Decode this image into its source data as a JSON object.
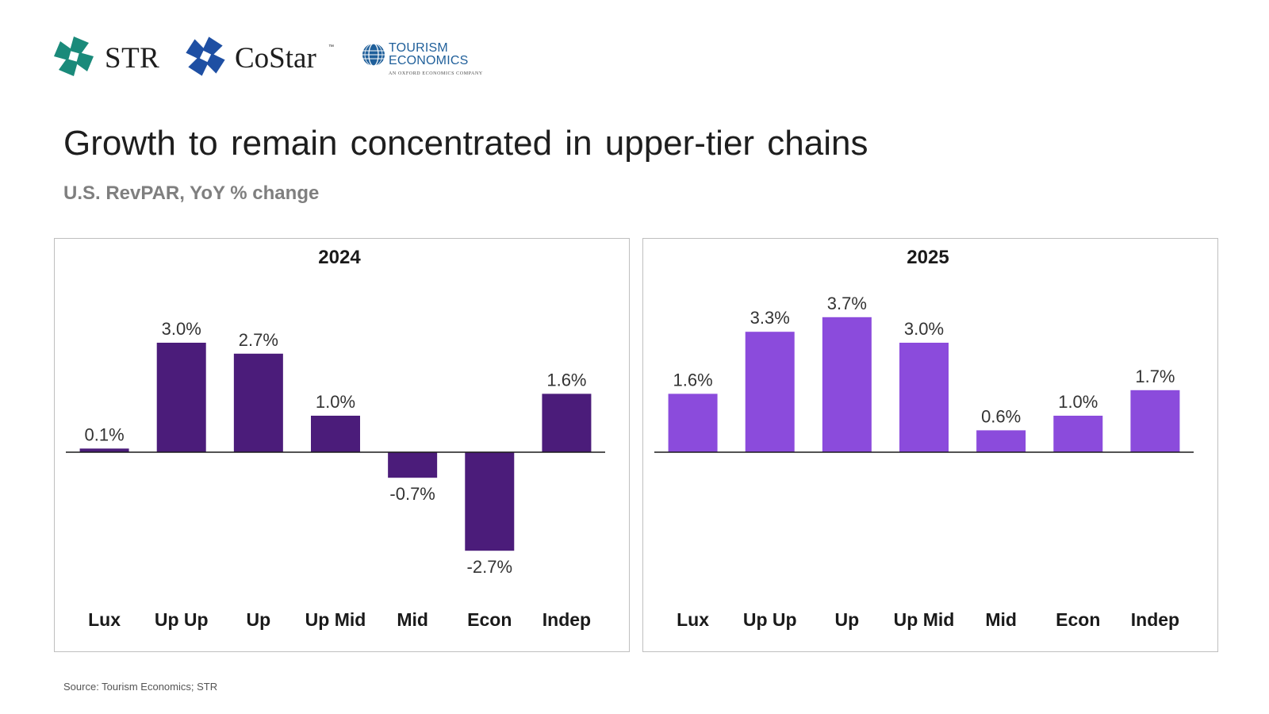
{
  "logos": {
    "str": {
      "text": "STR",
      "color": "#1a8a7a"
    },
    "costar": {
      "text": "CoStar",
      "tm": "™",
      "color": "#1e4fa3"
    },
    "tourism_economics": {
      "line1": "TOURISM",
      "line2": "ECONOMICS",
      "line3": "AN OXFORD ECONOMICS COMPANY",
      "color": "#1f5f9a"
    }
  },
  "header": {
    "title": "Growth to remain concentrated in upper-tier chains",
    "subtitle": "U.S. RevPAR, YoY % change"
  },
  "footer": {
    "source": "Source: Tourism Economics; STR"
  },
  "chart_data": [
    {
      "type": "bar",
      "title": "2024",
      "categories": [
        "Lux",
        "Up Up",
        "Up",
        "Up Mid",
        "Mid",
        "Econ",
        "Indep"
      ],
      "values": [
        0.1,
        3.0,
        2.7,
        1.0,
        -0.7,
        -2.7,
        1.6
      ],
      "labels": [
        "0.1%",
        "3.0%",
        "2.7%",
        "1.0%",
        "-0.7%",
        "-2.7%",
        "1.6%"
      ],
      "color": "#4b1c7a",
      "ylim": [
        -4.5,
        4.5
      ],
      "xlabel": "",
      "ylabel": "",
      "grid": false
    },
    {
      "type": "bar",
      "title": "2025",
      "categories": [
        "Lux",
        "Up Up",
        "Up",
        "Up Mid",
        "Mid",
        "Econ",
        "Indep"
      ],
      "values": [
        1.6,
        3.3,
        3.7,
        3.0,
        0.6,
        1.0,
        1.7
      ],
      "labels": [
        "1.6%",
        "3.3%",
        "3.7%",
        "3.0%",
        "0.6%",
        "1.0%",
        "1.7%"
      ],
      "color": "#8b4bdc",
      "ylim": [
        -4.5,
        4.5
      ],
      "xlabel": "",
      "ylabel": "",
      "grid": false
    }
  ]
}
